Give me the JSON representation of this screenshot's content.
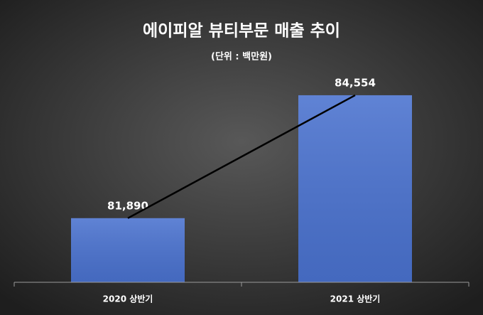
{
  "chart_data": {
    "type": "bar",
    "title": "에이피알 뷰티부문 매출 추이",
    "subtitle": "(단위 : 백만원)",
    "categories": [
      "2020 상반기",
      "2021 상반기"
    ],
    "values": [
      81890,
      84554
    ],
    "value_labels": [
      "81,890",
      "84,554"
    ],
    "color": "#4a72cf",
    "ylim": [
      80500,
      85000
    ],
    "trendline": true
  }
}
